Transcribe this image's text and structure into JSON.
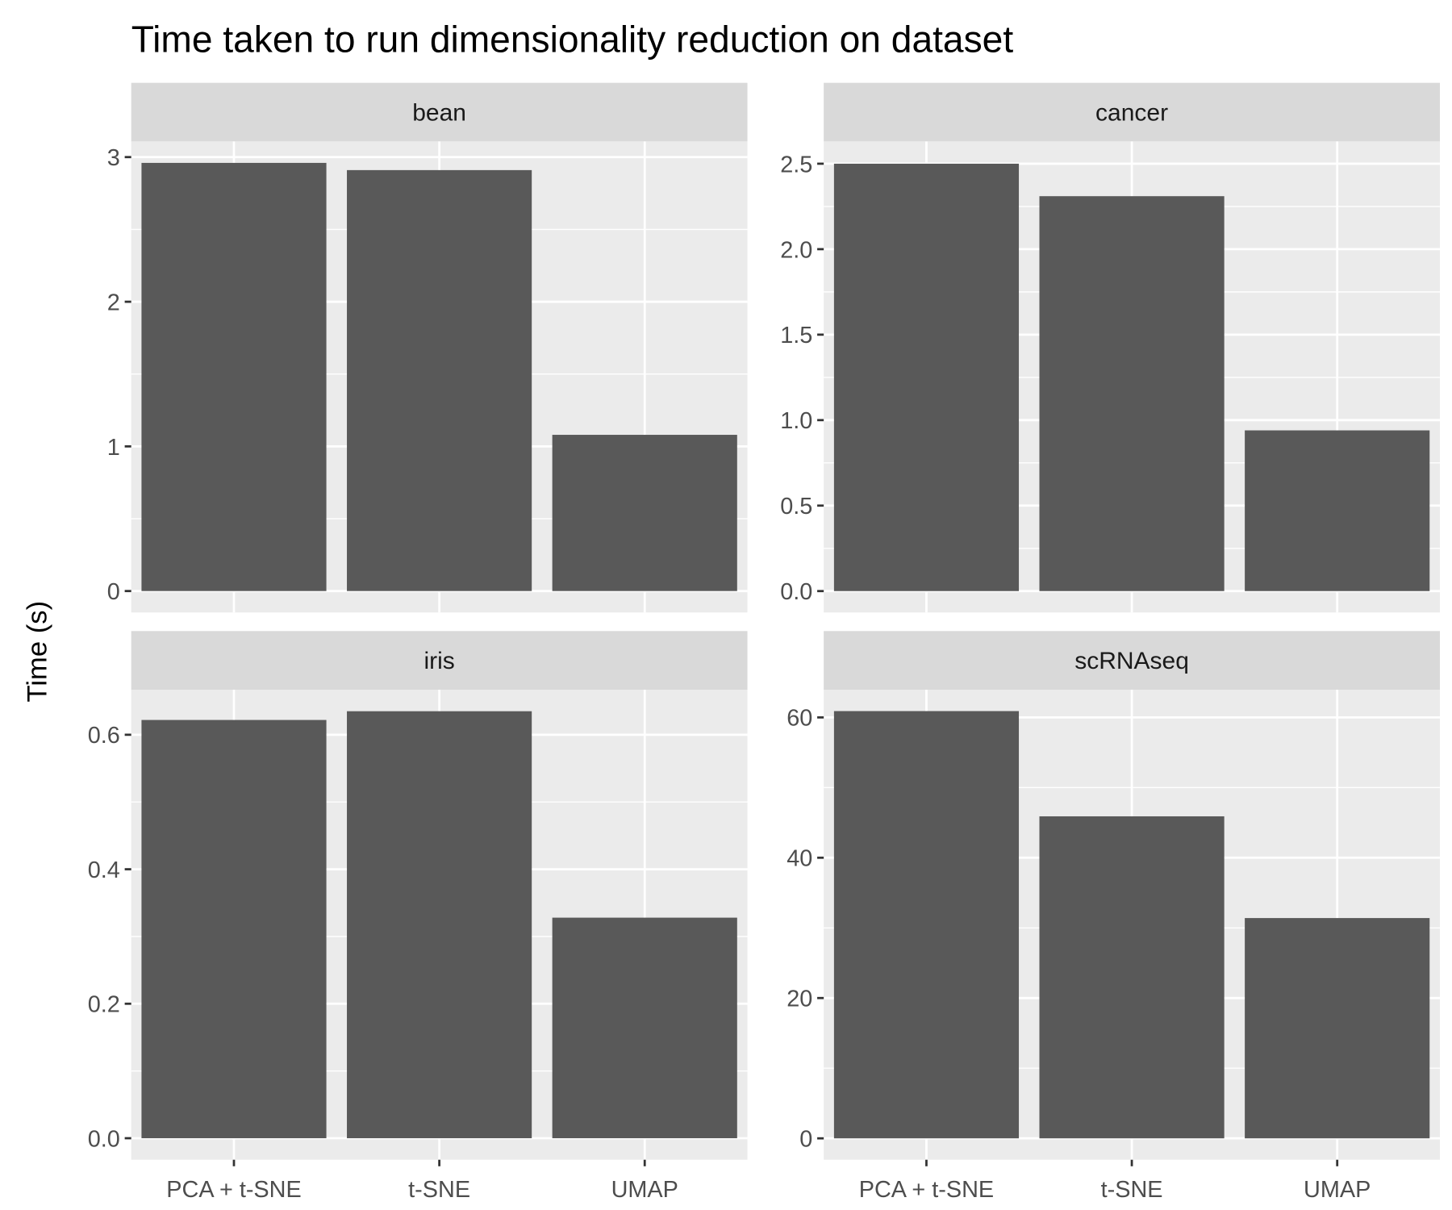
{
  "chart_data": {
    "type": "bar",
    "title": "Time taken to run dimensionality reduction on dataset",
    "xlabel": "",
    "ylabel": "Time (s)",
    "categories": [
      "PCA + t-SNE",
      "t-SNE",
      "UMAP"
    ],
    "grid": true,
    "panels": [
      {
        "name": "bean",
        "values": [
          2.96,
          2.91,
          1.08
        ],
        "ylim": [
          -0.148,
          3.108
        ],
        "ticks": [
          0,
          1,
          2,
          3
        ],
        "tick_labels": [
          "0",
          "1",
          "2",
          "3"
        ]
      },
      {
        "name": "cancer",
        "values": [
          2.5,
          2.31,
          0.94
        ],
        "ylim": [
          -0.125,
          2.63
        ],
        "ticks": [
          0,
          0.5,
          1,
          1.5,
          2,
          2.5
        ],
        "tick_labels": [
          "0.0",
          "0.5",
          "1.0",
          "1.5",
          "2.0",
          "2.5"
        ]
      },
      {
        "name": "iris",
        "values": [
          0.622,
          0.635,
          0.328
        ],
        "ylim": [
          -0.032,
          0.667
        ],
        "ticks": [
          0,
          0.2,
          0.4,
          0.6
        ],
        "tick_labels": [
          "0.0",
          "0.2",
          "0.4",
          "0.6"
        ]
      },
      {
        "name": "scRNAseq",
        "values": [
          60.9,
          45.9,
          31.4
        ],
        "ylim": [
          -3.05,
          63.95
        ],
        "ticks": [
          0,
          20,
          40,
          60
        ],
        "tick_labels": [
          "0",
          "20",
          "40",
          "60"
        ]
      }
    ],
    "colors": {
      "bar": "#595959",
      "panel": "#ebebeb",
      "strip": "#d9d9d9",
      "grid": "#ffffff"
    }
  }
}
